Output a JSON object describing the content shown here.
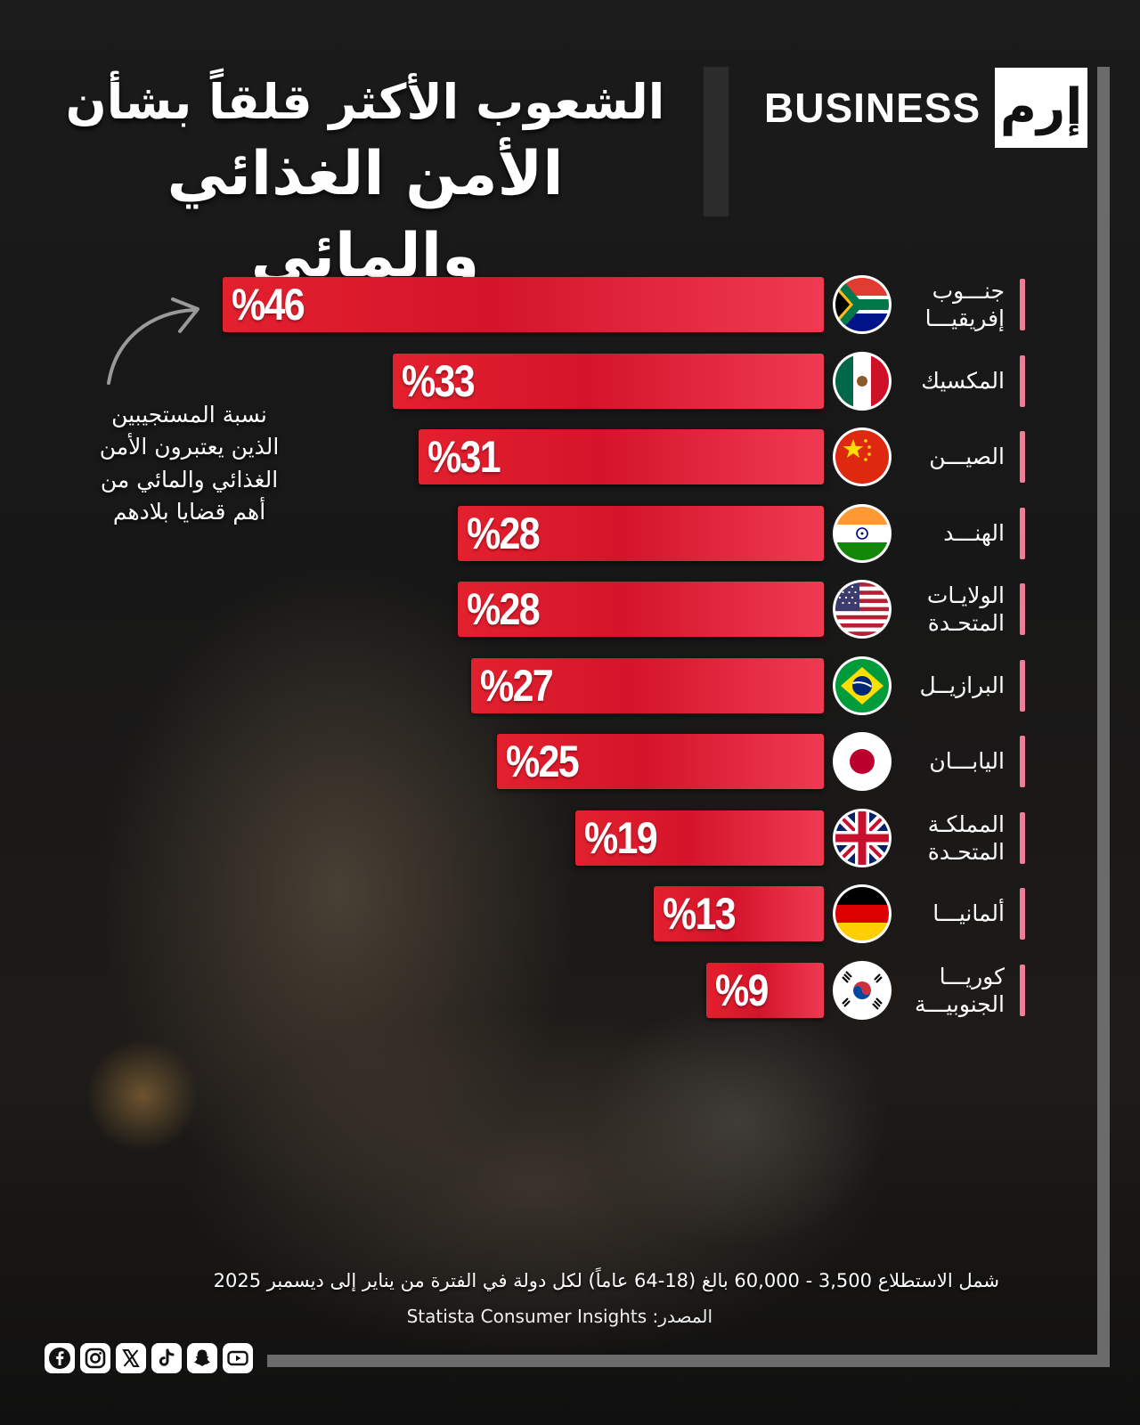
{
  "brand": {
    "name": "BUSINESS",
    "mark": "إرم"
  },
  "title": {
    "line1": "الشعوب الأكثر قلقاً بشأن",
    "line2": "الأمن الغذائي والمائي"
  },
  "note": {
    "line1": "نسبة المستجيبين",
    "line2": "الذين يعتبرون الأمن",
    "line3": "الغذائي والمائي من",
    "line4": "أهم قضايا بلادهم"
  },
  "footnote": "شمل الاستطلاع 3,500 - 60,000 بالغ (18-64 عاماً) لكل دولة في الفترة من يناير إلى ديسمبر 2025",
  "source": "المصدر: Statista Consumer Insights",
  "social": [
    "facebook-icon",
    "instagram-icon",
    "x-icon",
    "tiktok-icon",
    "snapchat-icon",
    "youtube-icon"
  ],
  "colors": {
    "bar": "#e2202e",
    "accent_tick": "#f07d98",
    "background": "#141414"
  },
  "chart_data": {
    "type": "bar",
    "orientation": "horizontal",
    "unit": "%",
    "xlim": [
      0,
      46
    ],
    "categories": [
      {
        "line1": "جنـــوب",
        "line2": "إفريقيـــا",
        "flag": "south-africa-flag"
      },
      {
        "line1": "المكسيك",
        "line2": "",
        "flag": "mexico-flag"
      },
      {
        "line1": "الصيـــن",
        "line2": "",
        "flag": "china-flag"
      },
      {
        "line1": "الهنـــد",
        "line2": "",
        "flag": "india-flag"
      },
      {
        "line1": "الولايـات",
        "line2": "المتحـدة",
        "flag": "usa-flag"
      },
      {
        "line1": "البرازيــل",
        "line2": "",
        "flag": "brazil-flag"
      },
      {
        "line1": "اليابـــان",
        "line2": "",
        "flag": "japan-flag"
      },
      {
        "line1": "المملكـة",
        "line2": "المتحـدة",
        "flag": "uk-flag"
      },
      {
        "line1": "ألمانيـــا",
        "line2": "",
        "flag": "germany-flag"
      },
      {
        "line1": "كوريـــا",
        "line2": "الجنوبيـــة",
        "flag": "south-korea-flag"
      }
    ],
    "values": [
      46,
      33,
      31,
      28,
      28,
      27,
      25,
      19,
      13,
      9
    ],
    "labels": [
      "%46",
      "%33",
      "%31",
      "%28",
      "%28",
      "%27",
      "%25",
      "%19",
      "%13",
      "%9"
    ]
  }
}
